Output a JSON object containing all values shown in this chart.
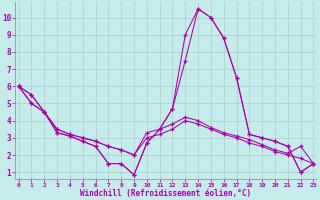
{
  "xlabel": "Windchill (Refroidissement éolien,°C)",
  "background_color": "#c5ecea",
  "grid_color": "#a8cece",
  "line_color": "#aa00aa",
  "x_ticks": [
    0,
    1,
    2,
    3,
    4,
    5,
    6,
    7,
    8,
    9,
    10,
    11,
    12,
    13,
    14,
    15,
    16,
    17,
    18,
    19,
    20,
    21,
    22,
    23
  ],
  "y_ticks": [
    1,
    2,
    3,
    4,
    5,
    6,
    7,
    8,
    9,
    10
  ],
  "xlim": [
    -0.3,
    23.3
  ],
  "ylim": [
    0.6,
    10.9
  ],
  "figsize": [
    3.2,
    2.0
  ],
  "dpi": 100,
  "series": [
    [
      6.0,
      5.5,
      4.5,
      3.3,
      3.1,
      2.8,
      2.5,
      1.5,
      1.5,
      0.85,
      2.7,
      3.5,
      4.7,
      9.0,
      10.5,
      10.0,
      8.8,
      6.5,
      3.2,
      3.0,
      2.8,
      2.5,
      1.0,
      1.5
    ],
    [
      6.0,
      5.5,
      4.5,
      3.3,
      3.1,
      2.8,
      2.5,
      1.5,
      1.5,
      0.85,
      2.7,
      3.5,
      4.7,
      7.5,
      10.5,
      10.0,
      8.8,
      6.5,
      3.2,
      3.0,
      2.8,
      2.5,
      1.0,
      1.5
    ],
    [
      6.0,
      5.0,
      4.5,
      3.5,
      3.2,
      3.0,
      2.8,
      2.5,
      2.3,
      2.0,
      3.3,
      3.5,
      3.8,
      4.2,
      4.0,
      3.6,
      3.3,
      3.1,
      2.9,
      2.6,
      2.3,
      2.1,
      2.5,
      1.5
    ],
    [
      6.0,
      5.0,
      4.5,
      3.5,
      3.2,
      3.0,
      2.8,
      2.5,
      2.3,
      2.0,
      3.0,
      3.2,
      3.5,
      4.0,
      3.8,
      3.5,
      3.2,
      3.0,
      2.7,
      2.5,
      2.2,
      2.0,
      1.8,
      1.5
    ]
  ]
}
